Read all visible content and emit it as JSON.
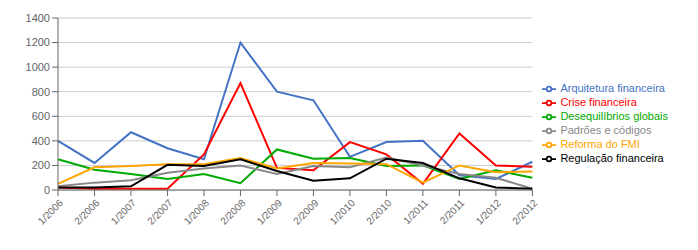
{
  "chart_data": {
    "type": "line",
    "categories": [
      "1/2006",
      "2/2006",
      "1/2007",
      "2/2007",
      "1/2008",
      "2/2008",
      "1/2009",
      "2/2009",
      "1/2010",
      "2/2010",
      "1/2011",
      "2/2011",
      "1/2012",
      "2/2012"
    ],
    "series": [
      {
        "name": "Arquitetura financeira",
        "color": "#4472C4",
        "values": [
          400,
          220,
          470,
          340,
          250,
          1200,
          800,
          730,
          270,
          390,
          400,
          120,
          90,
          230
        ]
      },
      {
        "name": "Crise financeira",
        "color": "#FF0000",
        "values": [
          20,
          10,
          10,
          10,
          290,
          870,
          180,
          160,
          390,
          290,
          50,
          460,
          200,
          190
        ]
      },
      {
        "name": "Desequilíbrios globais",
        "color": "#00AA00",
        "values": [
          250,
          165,
          130,
          90,
          130,
          55,
          330,
          255,
          260,
          195,
          200,
          90,
          160,
          100
        ]
      },
      {
        "name": "Padrões e códigos",
        "color": "#888888",
        "values": [
          30,
          60,
          80,
          140,
          175,
          200,
          130,
          195,
          185,
          265,
          200,
          130,
          100,
          10
        ]
      },
      {
        "name": "Reforma do FMI",
        "color": "#FFA500",
        "values": [
          50,
          185,
          195,
          210,
          210,
          260,
          175,
          220,
          215,
          210,
          60,
          200,
          145,
          150
        ]
      },
      {
        "name": "Regulação financeira",
        "color": "#000000",
        "values": [
          20,
          20,
          30,
          205,
          195,
          250,
          155,
          75,
          95,
          255,
          220,
          95,
          20,
          10
        ]
      }
    ],
    "ylim": [
      0,
      1400
    ],
    "yticks": [
      0,
      200,
      400,
      600,
      800,
      1000,
      1200,
      1400
    ],
    "grid": true,
    "legend": "right"
  }
}
